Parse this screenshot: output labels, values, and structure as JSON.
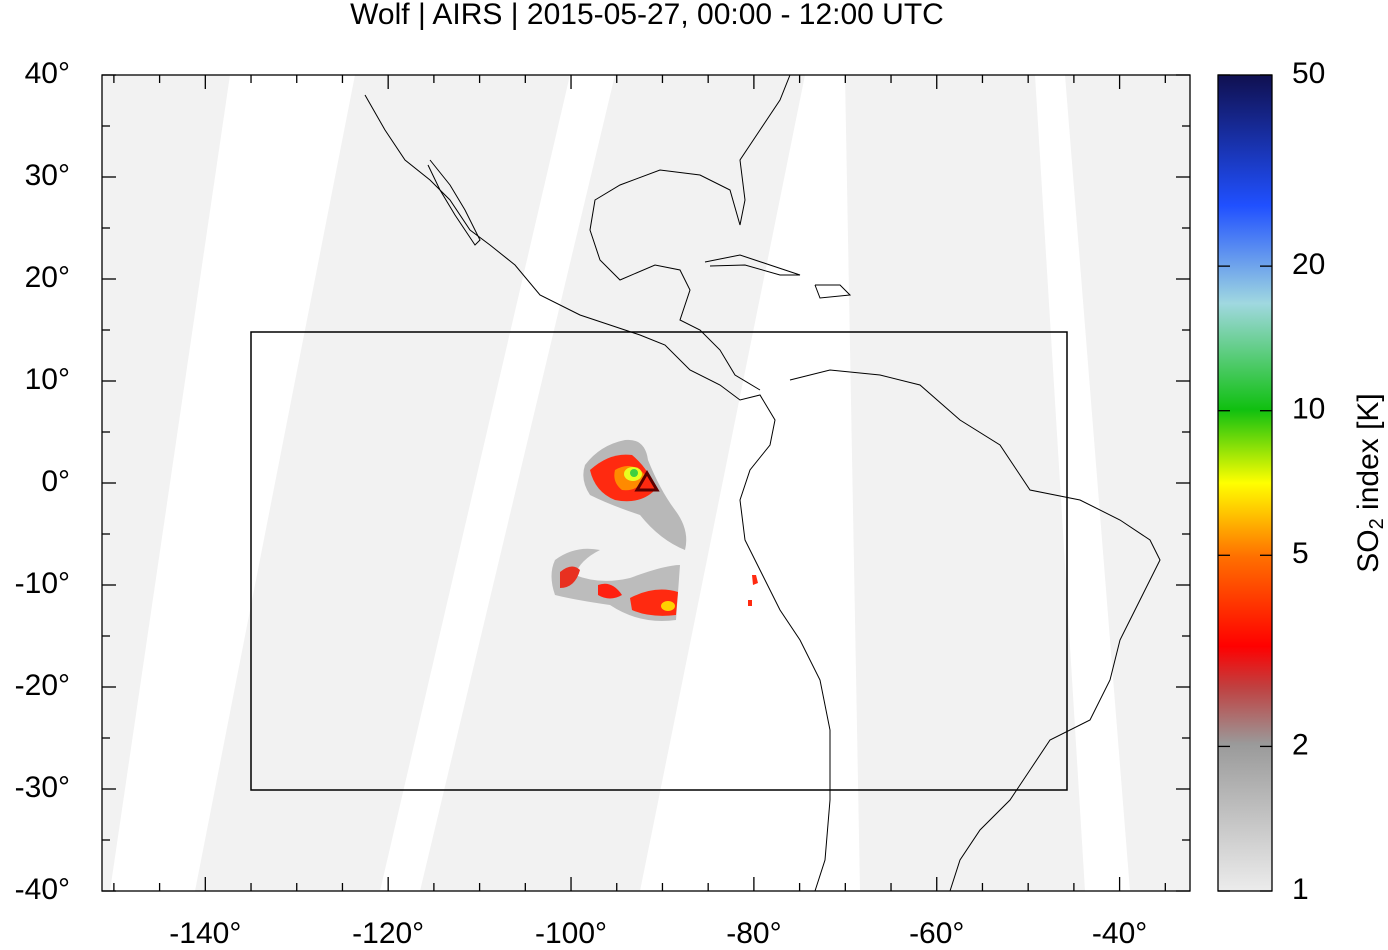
{
  "chart_data": {
    "type": "map",
    "title": "Wolf | AIRS | 2015-05-27, 00:00 - 12:00 UTC",
    "xlim": [
      -151.3,
      -32.3
    ],
    "ylim": [
      -40,
      40
    ],
    "xticks": [
      {
        "value": -140,
        "label": "-140°"
      },
      {
        "value": -120,
        "label": "-120°"
      },
      {
        "value": -100,
        "label": "-100°"
      },
      {
        "value": -80,
        "label": "-80°"
      },
      {
        "value": -60,
        "label": "-60°"
      },
      {
        "value": -40,
        "label": "-40°"
      }
    ],
    "yticks": [
      {
        "value": 40,
        "label": "40°"
      },
      {
        "value": 30,
        "label": "30°"
      },
      {
        "value": 20,
        "label": "20°"
      },
      {
        "value": 10,
        "label": "10°"
      },
      {
        "value": 0,
        "label": "0°"
      },
      {
        "value": -10,
        "label": "-10°"
      },
      {
        "value": -20,
        "label": "-20°"
      },
      {
        "value": -30,
        "label": "-30°"
      },
      {
        "value": -40,
        "label": "-40°"
      }
    ],
    "xminorticks": [
      -150,
      -145,
      -135,
      -130,
      -125,
      -115,
      -110,
      -105,
      -95,
      -90,
      -85,
      -75,
      -70,
      -65,
      -55,
      -50,
      -45,
      -35
    ],
    "yminorticks": [
      35,
      25,
      15,
      5,
      -5,
      -15,
      -25,
      -35
    ],
    "colorbar": {
      "log": true,
      "lim": [
        1,
        50
      ],
      "ticks": [
        1,
        2,
        5,
        10,
        20,
        50
      ],
      "label": {
        "main": "SO",
        "sub": "2",
        "rest": " index [K]"
      }
    }
  }
}
